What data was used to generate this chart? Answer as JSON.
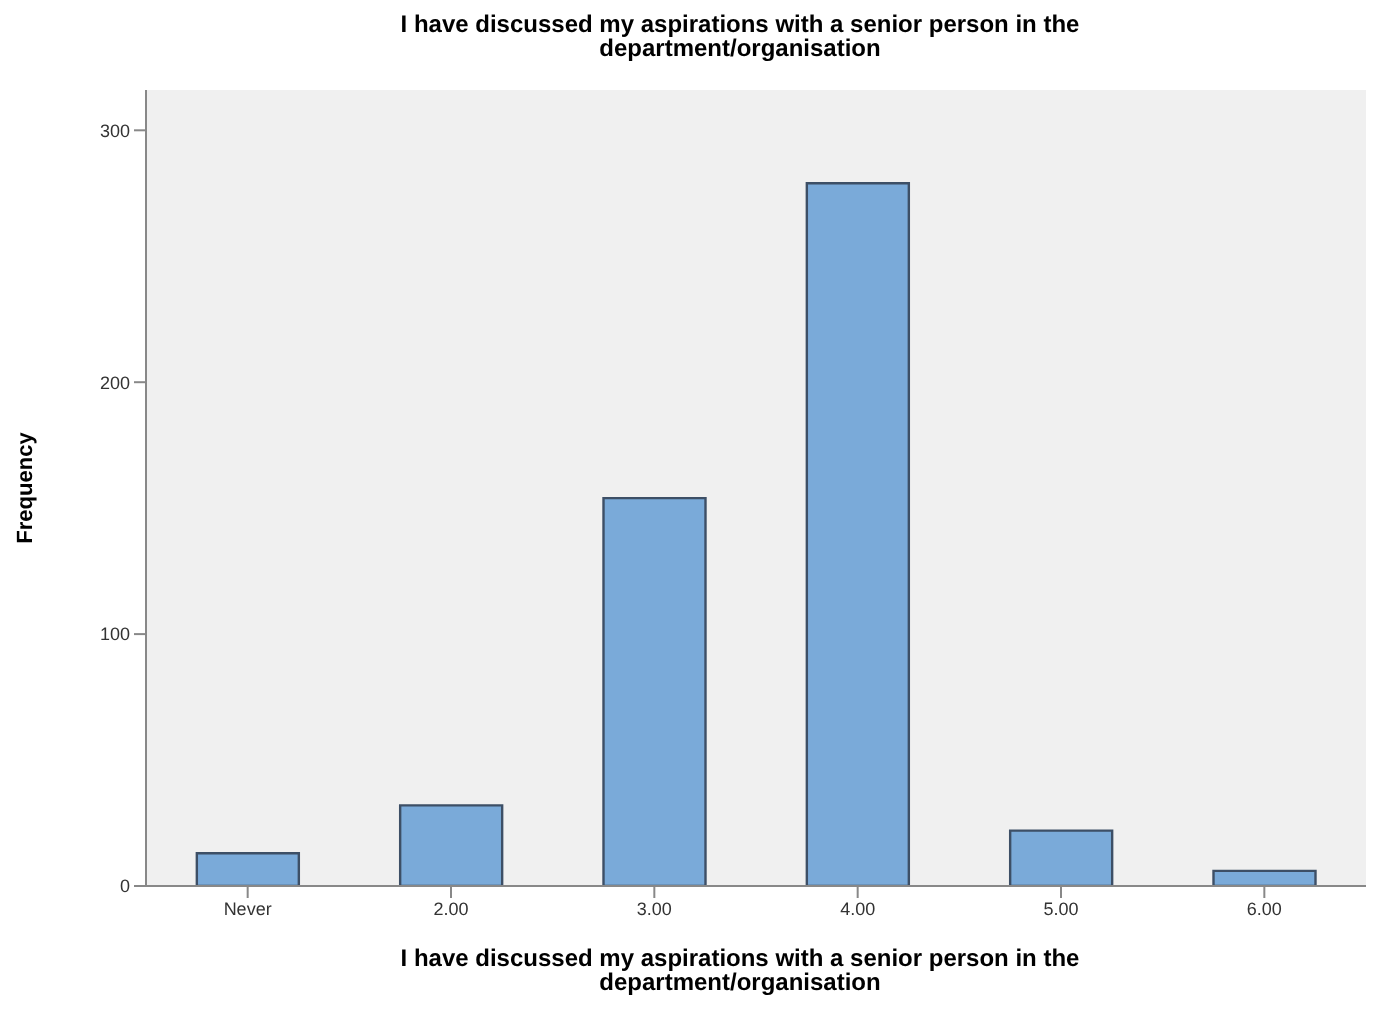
{
  "chart_data": {
    "type": "bar",
    "title": "I have discussed my aspirations with a senior person in the department/organisation",
    "xlabel": "I have discussed my aspirations with a senior person in the department/organisation",
    "ylabel": "Frequency",
    "categories": [
      "Never",
      "2.00",
      "3.00",
      "4.00",
      "5.00",
      "6.00"
    ],
    "values": [
      13,
      32,
      154,
      279,
      22,
      6
    ],
    "color": "#7aaad9",
    "ylim": [
      0,
      316
    ],
    "yticks": [
      0,
      100,
      200,
      300
    ],
    "grid": false
  }
}
